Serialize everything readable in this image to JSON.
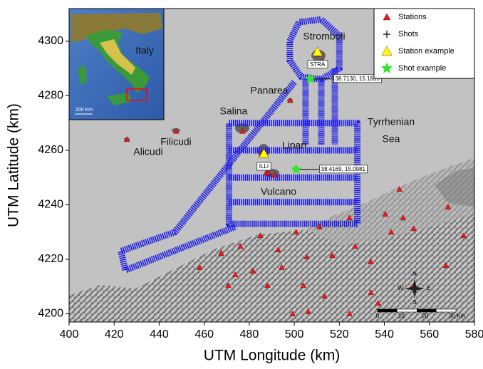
{
  "chart_data": {
    "type": "scatter",
    "x_label": "UTM Longitude (km)",
    "y_label": "UTM Latitude (km)",
    "xlim": [
      400,
      580
    ],
    "ylim": [
      4197,
      4312
    ],
    "xticks": [
      400,
      420,
      440,
      460,
      480,
      500,
      520,
      540,
      560,
      580
    ],
    "yticks": [
      4200,
      4220,
      4240,
      4260,
      4280,
      4300
    ],
    "legend": "top-right",
    "series": [
      {
        "name": "Stations",
        "color": "#e8191f",
        "marker": "triangle",
        "x": [
          510.3,
          512.8,
          498.2,
          477.0,
          447.5,
          425.7,
          485.6,
          487.5,
          488.4,
          491.3,
          484.9,
          467.5,
          476.0,
          492.8,
          500.8,
          511.2,
          524.5,
          527.0,
          540.4,
          543.0,
          546.7,
          553.0,
          548.3,
          568.3,
          575.2,
          567.3,
          534.0,
          516.9,
          505.5,
          494.4,
          481.7,
          473.8,
          458.0,
          470.7,
          488.1,
          504.0,
          513.4,
          534.0,
          537.2,
          499.2,
          506.1,
          553.0,
          524.5
        ],
        "y": [
          4295.3,
          4292.7,
          4278.3,
          4267.0,
          4267.0,
          4264.0,
          4258.7,
          4251.7,
          4251.7,
          4250.9,
          4228.7,
          4222.2,
          4224.8,
          4223.5,
          4230.0,
          4231.9,
          4235.2,
          4224.8,
          4236.6,
          4230.0,
          4245.7,
          4231.3,
          4235.2,
          4239.2,
          4228.7,
          4217.8,
          4219.1,
          4221.4,
          4220.9,
          4217.0,
          4215.7,
          4214.4,
          4217.0,
          4210.4,
          4210.4,
          4210.4,
          4206.5,
          4207.8,
          4203.9,
          4200.0,
          4200.8,
          4210.4,
          4200.0
        ]
      },
      {
        "name": "Shots",
        "color": "#1a1ae8",
        "marker": "plus",
        "x": [
          498,
          502,
          512,
          520,
          520,
          512,
          503,
          498,
          498,
          null,
          500,
          447,
          423,
          425,
          474,
          null,
          505,
          505,
          null,
          512,
          512,
          null,
          518,
          518,
          null,
          471,
          528,
          528,
          471,
          471,
          null,
          471,
          528,
          null,
          471,
          528,
          null,
          471,
          528
        ],
        "y": [
          4300,
          4307,
          4308,
          4302,
          4290,
          4286,
          4287,
          4293,
          4300,
          null,
          4285,
          4230,
          4223,
          4216,
          4232,
          null,
          4286,
          4262,
          null,
          4286,
          4262,
          null,
          4290,
          4262,
          null,
          4270,
          4270,
          4233,
          4233,
          4270,
          null,
          4260,
          4260,
          null,
          4250,
          4250,
          null,
          4241,
          4241
        ]
      },
      {
        "name": "Station example",
        "color": "#ffff00",
        "marker": "triangle",
        "x": [
          510.3,
          486.5
        ],
        "y": [
          4296.1,
          4258.7
        ],
        "point_labels": [
          "STRA",
          "ILLI"
        ]
      },
      {
        "name": "Shot example",
        "color": "#2ee62e",
        "marker": "star",
        "x": [
          507.1,
          500.8
        ],
        "y": [
          4286.2,
          4253.0
        ],
        "point_labels": [
          "38.7130, 15.1833",
          "38.4169, 15.0981"
        ]
      }
    ],
    "annotations": [
      "Stromboli",
      "Panarea",
      "Salina",
      "Filicudi",
      "Alicudi",
      "Lipari",
      "Vulcano",
      "Tyrrhenian",
      "Sea"
    ],
    "scale_bar": [
      "0",
      "10",
      "20",
      "30 Km"
    ],
    "compass": [
      "N",
      "E",
      "S",
      "W"
    ],
    "inset": {
      "label": "Italy",
      "scale": "200 Km"
    }
  }
}
